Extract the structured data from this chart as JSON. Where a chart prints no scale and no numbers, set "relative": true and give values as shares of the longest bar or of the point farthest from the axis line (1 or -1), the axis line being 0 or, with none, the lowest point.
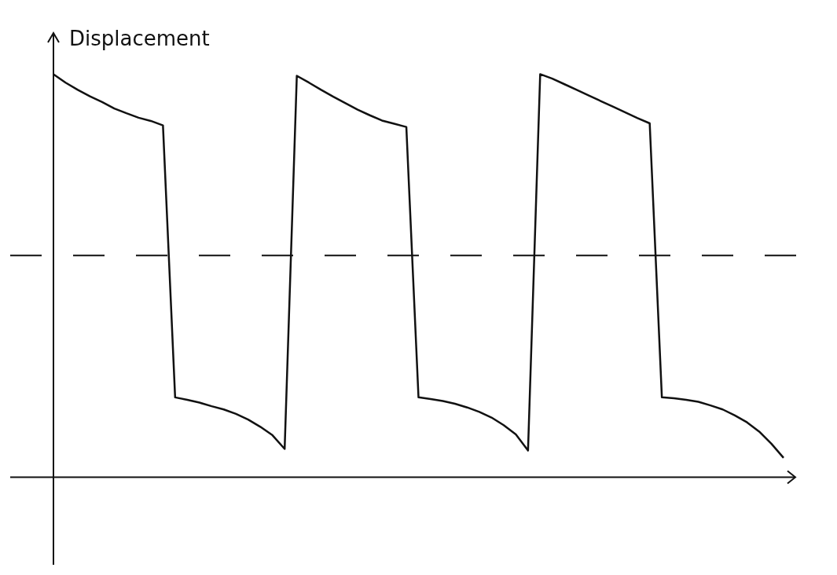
{
  "chart_data": {
    "type": "line",
    "ylabel": "Displacement",
    "relative": true,
    "line_style": "solid",
    "categories": [
      null,
      null,
      null,
      null,
      null,
      null,
      null,
      null,
      null,
      null,
      null,
      null,
      null,
      null,
      null,
      null,
      null,
      null,
      null,
      null,
      null,
      null,
      null,
      null,
      null,
      null,
      null,
      null,
      null,
      null,
      null,
      null,
      null,
      null,
      null,
      null,
      null,
      null,
      null,
      null,
      null,
      null,
      null,
      null,
      null,
      null,
      null,
      null,
      null,
      null,
      null,
      null,
      null,
      null,
      null,
      null,
      null,
      null,
      null,
      null,
      null
    ],
    "series": [
      {
        "color": "#111111",
        "values": [
          1.0,
          0.979,
          0.961,
          0.945,
          0.931,
          0.915,
          0.903,
          0.892,
          0.884,
          0.873,
          0.198,
          0.192,
          0.185,
          0.176,
          0.168,
          0.157,
          0.143,
          0.125,
          0.104,
          0.07,
          0.996,
          0.979,
          0.961,
          0.944,
          0.928,
          0.912,
          0.898,
          0.885,
          0.877,
          0.869,
          0.198,
          0.194,
          0.189,
          0.182,
          0.173,
          0.162,
          0.148,
          0.129,
          0.106,
          0.066,
          1.0,
          0.989,
          0.975,
          0.961,
          0.947,
          0.933,
          0.919,
          0.905,
          0.891,
          0.878,
          0.198,
          0.196,
          0.192,
          0.187,
          0.178,
          0.168,
          0.153,
          0.136,
          0.113,
          0.083,
          0.048
        ]
      }
    ],
    "ref_lines": [
      {
        "axis": "y",
        "value": 0.55,
        "color": "#111111",
        "line_style": "dashed"
      }
    ]
  }
}
